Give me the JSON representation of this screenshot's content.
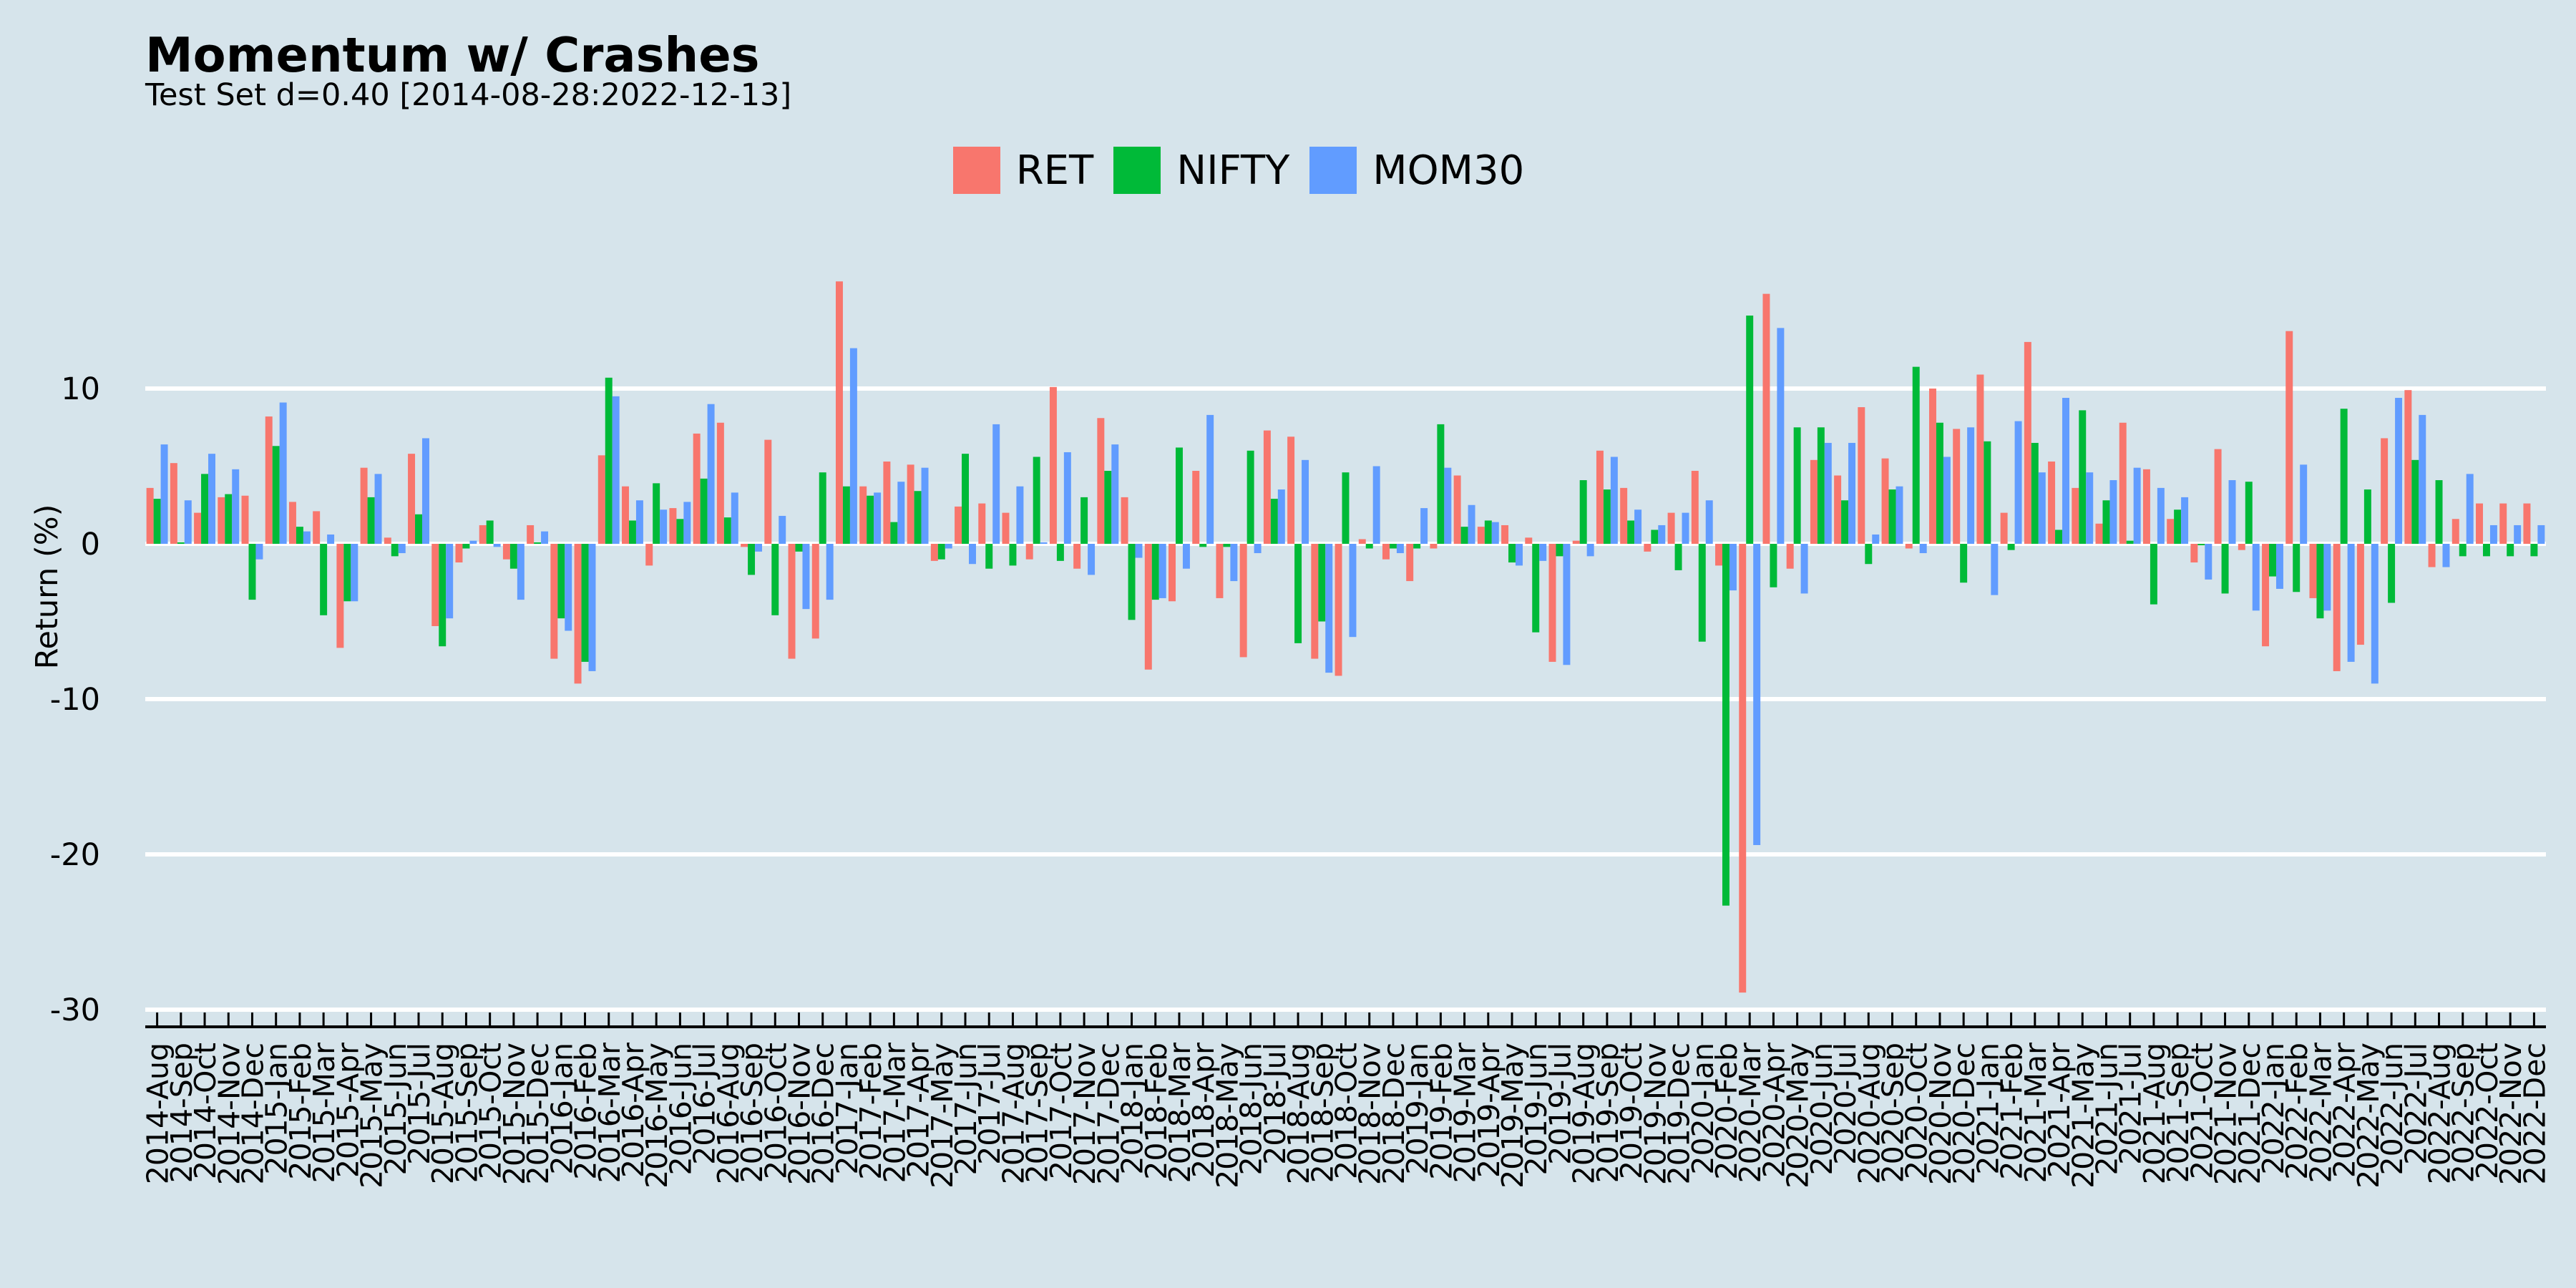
{
  "chart_data": {
    "type": "bar",
    "title": "Momentum w/ Crashes",
    "subtitle": "Test Set d=0.40 [2014-08-28:2022-12-13]",
    "xlabel": "",
    "ylabel": "Return (%)",
    "ylim": [
      -30,
      20
    ],
    "yticks": [
      10,
      0,
      -10,
      -20,
      -30
    ],
    "grid": true,
    "legend_position": "top-center",
    "categories": [
      "2014-Aug",
      "2014-Sep",
      "2014-Oct",
      "2014-Nov",
      "2014-Dec",
      "2015-Jan",
      "2015-Feb",
      "2015-Mar",
      "2015-Apr",
      "2015-May",
      "2015-Jun",
      "2015-Jul",
      "2015-Aug",
      "2015-Sep",
      "2015-Oct",
      "2015-Nov",
      "2015-Dec",
      "2016-Jan",
      "2016-Feb",
      "2016-Mar",
      "2016-Apr",
      "2016-May",
      "2016-Jun",
      "2016-Jul",
      "2016-Aug",
      "2016-Sep",
      "2016-Oct",
      "2016-Nov",
      "2016-Dec",
      "2017-Jan",
      "2017-Feb",
      "2017-Mar",
      "2017-Apr",
      "2017-May",
      "2017-Jun",
      "2017-Jul",
      "2017-Aug",
      "2017-Sep",
      "2017-Oct",
      "2017-Nov",
      "2017-Dec",
      "2018-Jan",
      "2018-Feb",
      "2018-Mar",
      "2018-Apr",
      "2018-May",
      "2018-Jun",
      "2018-Jul",
      "2018-Aug",
      "2018-Sep",
      "2018-Oct",
      "2018-Nov",
      "2018-Dec",
      "2019-Jan",
      "2019-Feb",
      "2019-Mar",
      "2019-Apr",
      "2019-May",
      "2019-Jun",
      "2019-Jul",
      "2019-Aug",
      "2019-Sep",
      "2019-Oct",
      "2019-Nov",
      "2019-Dec",
      "2020-Jan",
      "2020-Feb",
      "2020-Mar",
      "2020-Apr",
      "2020-May",
      "2020-Jun",
      "2020-Jul",
      "2020-Aug",
      "2020-Sep",
      "2020-Oct",
      "2020-Nov",
      "2020-Dec",
      "2021-Jan",
      "2021-Feb",
      "2021-Mar",
      "2021-Apr",
      "2021-May",
      "2021-Jun",
      "2021-Jul",
      "2021-Aug",
      "2021-Sep",
      "2021-Oct",
      "2021-Nov",
      "2021-Dec",
      "2022-Jan",
      "2022-Feb",
      "2022-Mar",
      "2022-Apr",
      "2022-May",
      "2022-Jun",
      "2022-Jul",
      "2022-Aug",
      "2022-Sep",
      "2022-Oct",
      "2022-Nov",
      "2022-Dec"
    ],
    "series": [
      {
        "name": "RET",
        "color": "#f8766d",
        "values": [
          3.6,
          5.2,
          2.0,
          3.0,
          3.1,
          8.2,
          2.7,
          2.1,
          -6.7,
          4.9,
          0.4,
          5.8,
          -5.3,
          -1.2,
          1.2,
          -1.0,
          1.2,
          -7.4,
          -9.0,
          5.7,
          3.7,
          -1.4,
          2.3,
          7.1,
          7.8,
          -0.2,
          6.7,
          -7.4,
          -6.1,
          16.9,
          3.7,
          5.3,
          5.1,
          -1.1,
          2.4,
          2.6,
          2.0,
          -1.0,
          10.1,
          -1.6,
          8.1,
          3.0,
          -8.1,
          -3.7,
          4.7,
          -3.5,
          -7.3,
          7.3,
          6.9,
          -7.4,
          -8.5,
          0.3,
          -1.0,
          -2.4,
          -0.3,
          4.4,
          1.1,
          1.2,
          0.4,
          -7.6,
          0.2,
          6.0,
          3.6,
          -0.5,
          2.0,
          4.7,
          -1.4,
          -28.9,
          16.1,
          -1.6,
          5.4,
          4.4,
          8.8,
          5.5,
          -0.3,
          10.0,
          7.4,
          10.9,
          2.0,
          13.0,
          5.3,
          3.6,
          1.3,
          7.8,
          4.8,
          1.6,
          -1.2,
          6.1,
          -0.4,
          -6.6,
          13.7,
          -3.5,
          -8.2,
          -6.5,
          6.8,
          9.9,
          -1.5,
          1.6,
          2.6,
          2.6,
          2.6
        ]
      },
      {
        "name": "NIFTY",
        "color": "#00ba38",
        "values": [
          2.9,
          0.1,
          4.5,
          3.2,
          -3.6,
          6.3,
          1.1,
          -4.6,
          -3.7,
          3.0,
          -0.8,
          1.9,
          -6.6,
          -0.3,
          1.5,
          -1.6,
          0.1,
          -4.8,
          -7.6,
          10.7,
          1.5,
          3.9,
          1.6,
          4.2,
          1.7,
          -2.0,
          -4.6,
          -0.5,
          4.6,
          3.7,
          3.1,
          1.4,
          3.4,
          -1.0,
          5.8,
          -1.6,
          -1.4,
          5.6,
          -1.1,
          3.0,
          4.7,
          -4.9,
          -3.6,
          6.2,
          -0.2,
          -0.2,
          6.0,
          2.9,
          -6.4,
          -5.0,
          4.6,
          -0.3,
          -0.3,
          -0.3,
          7.7,
          1.1,
          1.5,
          -1.2,
          -5.7,
          -0.8,
          4.1,
          3.5,
          1.5,
          0.9,
          -1.7,
          -6.3,
          -23.3,
          14.7,
          -2.8,
          7.5,
          7.5,
          2.8,
          -1.3,
          3.5,
          11.4,
          7.8,
          -2.5,
          6.6,
          -0.4,
          6.5,
          0.9,
          8.6,
          2.8,
          0.2,
          -3.9,
          2.2,
          -0.1,
          -3.2,
          4.0,
          -2.1,
          -3.1,
          -4.8,
          8.7,
          3.5,
          -3.8,
          5.4,
          4.1,
          -0.8,
          -0.8,
          -0.8,
          -0.8
        ]
      },
      {
        "name": "MOM30",
        "color": "#619cff",
        "values": [
          6.4,
          2.8,
          5.8,
          4.8,
          -1.0,
          9.1,
          0.8,
          0.6,
          -3.7,
          4.5,
          -0.6,
          6.8,
          -4.8,
          0.2,
          -0.2,
          -3.6,
          0.8,
          -5.6,
          -8.2,
          9.5,
          2.8,
          2.2,
          2.7,
          9.0,
          3.3,
          -0.5,
          1.8,
          -4.2,
          -3.6,
          12.6,
          3.3,
          4.0,
          4.9,
          -0.3,
          -1.3,
          7.7,
          3.7,
          0.1,
          5.9,
          -2.0,
          6.4,
          -0.9,
          -3.5,
          -1.6,
          8.3,
          -2.4,
          -0.6,
          3.5,
          5.4,
          -8.3,
          -6.0,
          5.0,
          -0.6,
          2.3,
          4.9,
          2.5,
          1.4,
          -1.4,
          -1.1,
          -7.8,
          -0.8,
          5.6,
          2.2,
          1.2,
          2.0,
          2.8,
          -3.0,
          -19.4,
          13.9,
          -3.2,
          6.5,
          6.5,
          0.6,
          3.7,
          -0.6,
          5.6,
          7.5,
          -3.3,
          7.9,
          4.6,
          9.4,
          4.6,
          4.1,
          4.9,
          3.6,
          3.0,
          -2.3,
          4.1,
          -4.3,
          -2.9,
          5.1,
          -4.3,
          -7.6,
          -9.0,
          9.4,
          8.3,
          -1.5,
          4.5,
          1.2,
          1.2,
          1.2
        ]
      }
    ]
  }
}
